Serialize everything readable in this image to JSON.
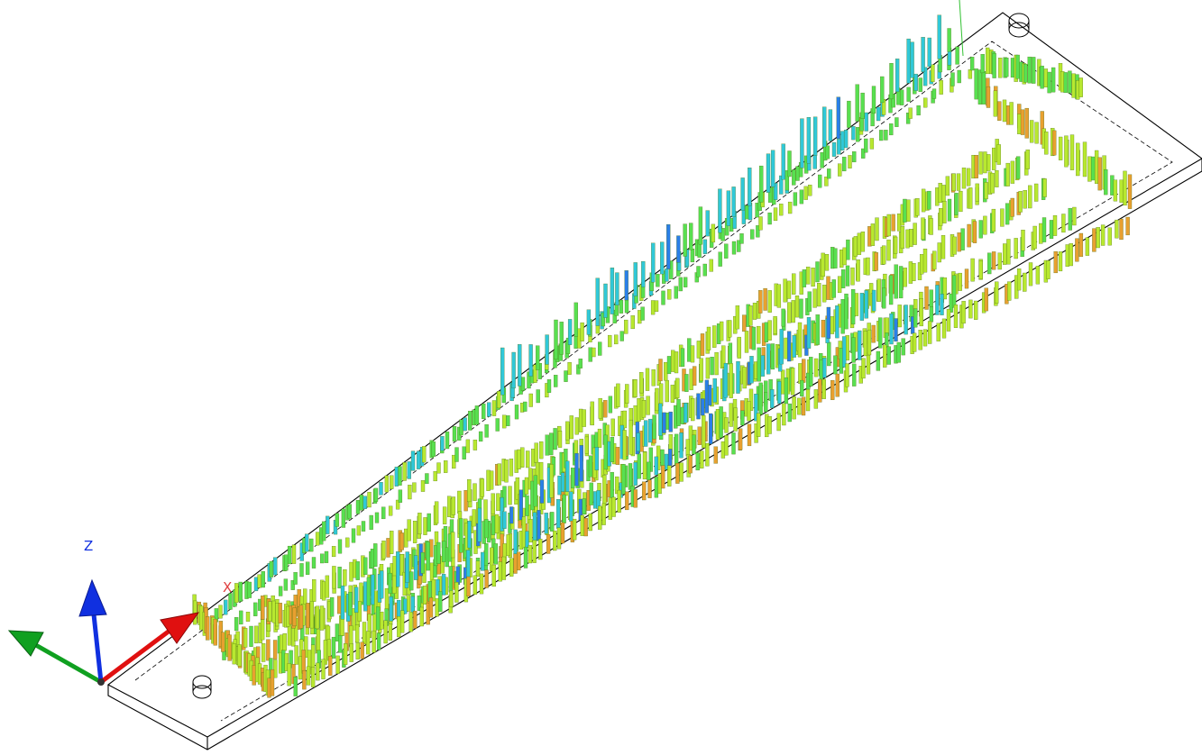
{
  "viewport": {
    "background": "#ffffff",
    "outline_color": "#000000"
  },
  "triad": {
    "z_label": "Z",
    "x_label": "X",
    "x_color": "#e01010",
    "y_color": "#10a020",
    "z_color": "#1030e0",
    "x_label_color": "#e04040",
    "z_label_color": "#1030e0"
  },
  "stress_palette": {
    "low": "#2a7fe8",
    "cyan": "#30c8d8",
    "green": "#58e050",
    "yellow_green": "#b8e830",
    "orange": "#e8a030"
  }
}
